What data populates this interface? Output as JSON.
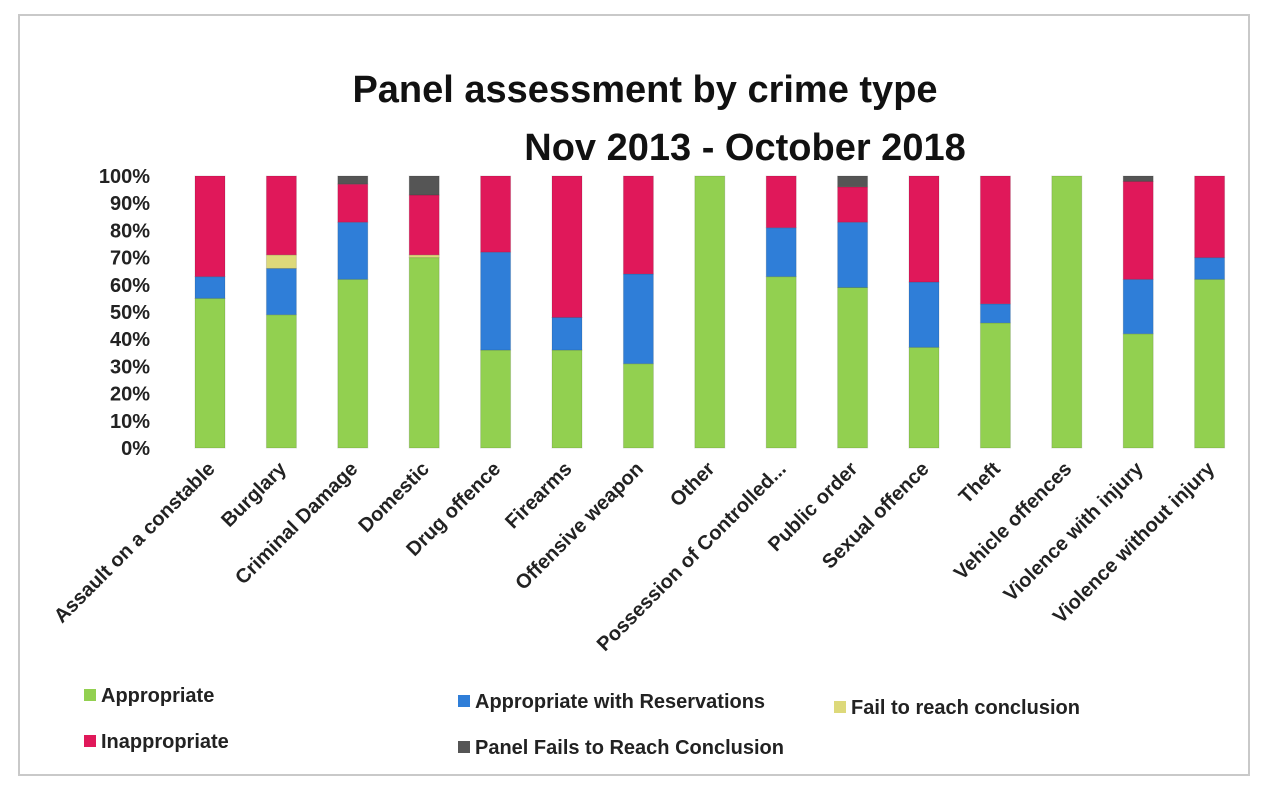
{
  "chart_data": {
    "type": "bar",
    "stacked": true,
    "title": "Panel assessment by crime type",
    "subtitle": "Nov 2013 - October 2018",
    "ylim": [
      0,
      100
    ],
    "yticks": [
      "0%",
      "10%",
      "20%",
      "30%",
      "40%",
      "50%",
      "60%",
      "70%",
      "80%",
      "90%",
      "100%"
    ],
    "categories": [
      "Assault on a constable",
      "Burglary",
      "Criminal Damage",
      "Domestic",
      "Drug offence",
      "Firearms",
      "Offensive weapon",
      "Other",
      "Possession of Controlled...",
      "Public order",
      "Sexual offence",
      "Theft",
      "Vehicle offences",
      "Violence with injury",
      "Violence without injury"
    ],
    "series": [
      {
        "name": "Appropriate",
        "color": "#92d050",
        "values": [
          55,
          49,
          62,
          70,
          36,
          36,
          31,
          100,
          63,
          59,
          37,
          46,
          100,
          42,
          62
        ]
      },
      {
        "name": "Appropriate with Reservations",
        "color": "#2f7ed8",
        "values": [
          8,
          17,
          21,
          0,
          36,
          12,
          33,
          0,
          18,
          24,
          24,
          7,
          0,
          20,
          8
        ]
      },
      {
        "name": "Fail to reach conclusion",
        "color": "#ddd97a",
        "values": [
          0,
          5,
          0,
          1,
          0,
          0,
          0,
          0,
          0,
          0,
          0,
          0,
          0,
          0,
          0
        ]
      },
      {
        "name": "Inappropriate",
        "color": "#e0185a",
        "values": [
          37,
          29,
          14,
          22,
          28,
          52,
          36,
          0,
          19,
          13,
          39,
          47,
          0,
          36,
          30
        ]
      },
      {
        "name": "Panel Fails to Reach Conclusion",
        "color": "#555555",
        "values": [
          0,
          0,
          3,
          7,
          0,
          0,
          0,
          0,
          0,
          4,
          0,
          0,
          0,
          2,
          0
        ]
      }
    ],
    "legend_position": "bottom",
    "grid": false
  }
}
